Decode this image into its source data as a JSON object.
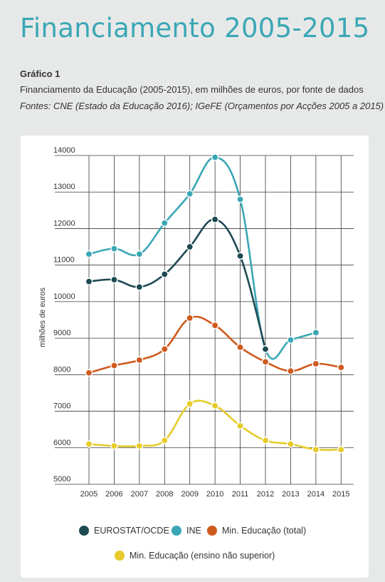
{
  "header": {
    "title": "Financiamento 2005-2015",
    "figure_label": "Gráfico 1",
    "subtitle": "Financiamento da Educação (2005-2015), em milhões de euros, por fonte de dados",
    "source": "Fontes: CNE (Estado da Educação 2016); IGeFE (Orçamentos por Acções 2005 a 2015)"
  },
  "chart_data": {
    "type": "line",
    "title": "",
    "xlabel": "",
    "ylabel": "milhões de euros",
    "x": [
      "2005",
      "2006",
      "2007",
      "2008",
      "2009",
      "2010",
      "2011",
      "2012",
      "2013",
      "2014",
      "2015"
    ],
    "ylim": [
      5000,
      14000
    ],
    "yticks": [
      "5000",
      "6000",
      "7000",
      "8000",
      "9000",
      "10000",
      "11000",
      "12000",
      "13000",
      "14000"
    ],
    "grid": true,
    "curve": "smooth",
    "series": [
      {
        "name": "EUROSTAT/OCDE",
        "color": "#1e4a52",
        "values": [
          10550,
          10600,
          10400,
          10750,
          11500,
          12250,
          11250,
          8700,
          null,
          null,
          null
        ]
      },
      {
        "name": "INE",
        "color": "#3aa7b5",
        "values": [
          11300,
          11450,
          11300,
          12150,
          12950,
          13950,
          12800,
          8700,
          8950,
          9150,
          null
        ]
      },
      {
        "name": "Min. Educação (total)",
        "color": "#cf5a1e",
        "values": [
          8050,
          8250,
          8400,
          8700,
          9550,
          9350,
          8750,
          8350,
          8100,
          8300,
          8200
        ]
      },
      {
        "name": "Min. Educação (ensino não superior)",
        "color": "#e6cb2a",
        "values": [
          6100,
          6050,
          6050,
          6200,
          7200,
          7150,
          6600,
          6200,
          6100,
          5950,
          5950
        ]
      }
    ]
  }
}
